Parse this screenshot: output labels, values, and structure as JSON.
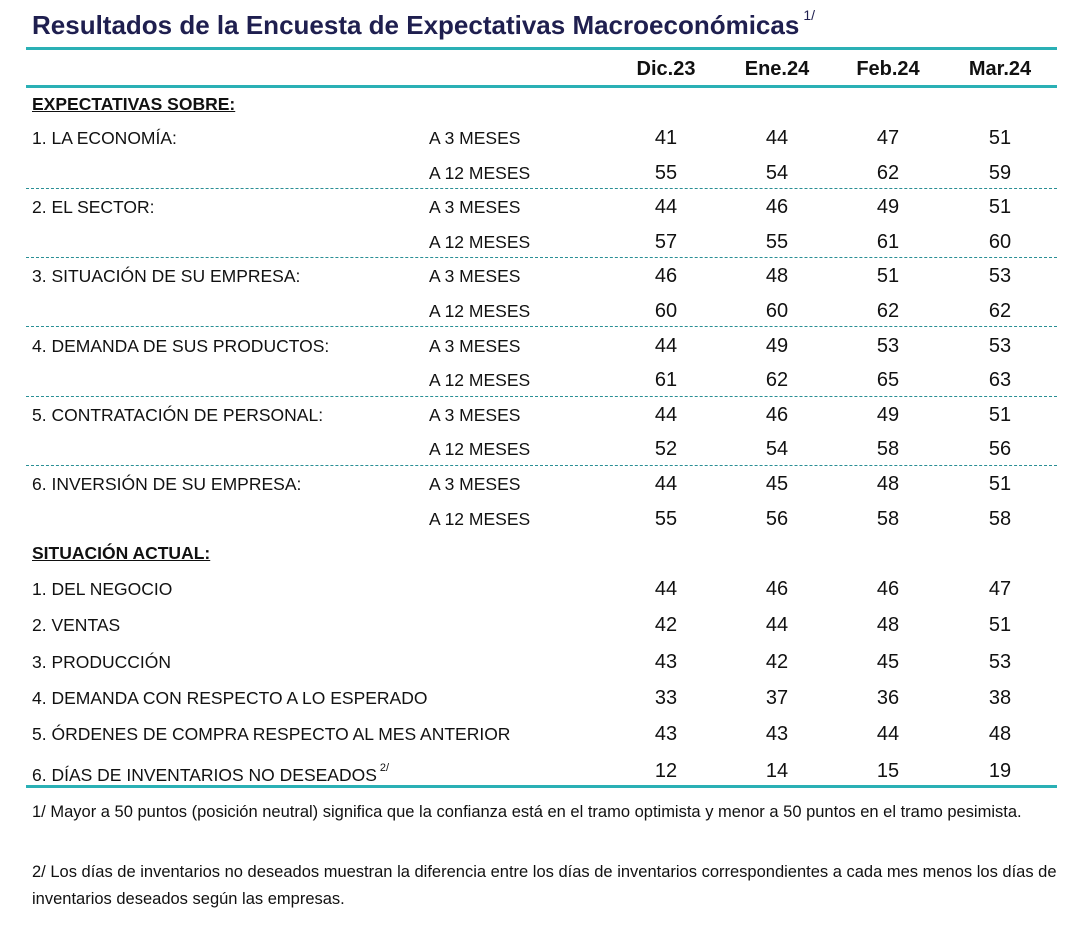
{
  "title": "Resultados de la Encuesta de Expectativas Macroeconómicas",
  "title_note": "1/",
  "columns": [
    "Dic.23",
    "Ene.24",
    "Feb.24",
    "Mar.24"
  ],
  "colors": {
    "title": "#1f1f4f",
    "rule": "#2ab0b5"
  },
  "expectativas": {
    "heading": "EXPECTATIVAS SOBRE:",
    "groups": [
      {
        "label": "1. LA ECONOMÍA:",
        "rows": [
          {
            "horizon": "A 3 MESES",
            "values": [
              41,
              44,
              47,
              51
            ]
          },
          {
            "horizon": "A 12 MESES",
            "values": [
              55,
              54,
              62,
              59
            ]
          }
        ]
      },
      {
        "label": "2. EL SECTOR:",
        "rows": [
          {
            "horizon": "A 3 MESES",
            "values": [
              44,
              46,
              49,
              51
            ]
          },
          {
            "horizon": "A 12 MESES",
            "values": [
              57,
              55,
              61,
              60
            ]
          }
        ]
      },
      {
        "label": "3. SITUACIÓN DE SU EMPRESA:",
        "rows": [
          {
            "horizon": "A 3 MESES",
            "values": [
              46,
              48,
              51,
              53
            ]
          },
          {
            "horizon": "A 12 MESES",
            "values": [
              60,
              60,
              62,
              62
            ]
          }
        ]
      },
      {
        "label": "4. DEMANDA DE SUS PRODUCTOS:",
        "rows": [
          {
            "horizon": "A 3 MESES",
            "values": [
              44,
              49,
              53,
              53
            ]
          },
          {
            "horizon": "A 12 MESES",
            "values": [
              61,
              62,
              65,
              63
            ]
          }
        ]
      },
      {
        "label": "5. CONTRATACIÓN DE PERSONAL:",
        "rows": [
          {
            "horizon": "A 3 MESES",
            "values": [
              44,
              46,
              49,
              51
            ]
          },
          {
            "horizon": "A 12 MESES",
            "values": [
              52,
              54,
              58,
              56
            ]
          }
        ]
      },
      {
        "label": "6. INVERSIÓN DE SU EMPRESA:",
        "rows": [
          {
            "horizon": "A 3 MESES",
            "values": [
              44,
              45,
              48,
              51
            ]
          },
          {
            "horizon": "A 12 MESES",
            "values": [
              55,
              56,
              58,
              58
            ]
          }
        ]
      }
    ]
  },
  "actual": {
    "heading": "SITUACIÓN ACTUAL:",
    "rows": [
      {
        "label": "1. DEL NEGOCIO",
        "values": [
          44,
          46,
          46,
          47
        ]
      },
      {
        "label": "2. VENTAS",
        "values": [
          42,
          44,
          48,
          51
        ]
      },
      {
        "label": "3. PRODUCCIÓN",
        "values": [
          43,
          42,
          45,
          53
        ]
      },
      {
        "label": "4. DEMANDA CON RESPECTO A LO ESPERADO",
        "values": [
          33,
          37,
          36,
          38
        ]
      },
      {
        "label": "5. ÓRDENES DE COMPRA RESPECTO AL MES ANTERIOR",
        "values": [
          43,
          43,
          44,
          48
        ]
      },
      {
        "label": "6. DÍAS DE INVENTARIOS NO DESEADOS",
        "note": "2/",
        "values": [
          12,
          14,
          15,
          19
        ]
      }
    ]
  },
  "footnotes": [
    "1/ Mayor a 50 puntos (posición neutral) significa que la confianza está en el tramo optimista y menor a 50 puntos en el tramo pesimista.",
    "2/ Los días de inventarios no deseados muestran la diferencia entre los días de inventarios correspondientes a cada mes menos los días de inventarios deseados según las empresas."
  ]
}
